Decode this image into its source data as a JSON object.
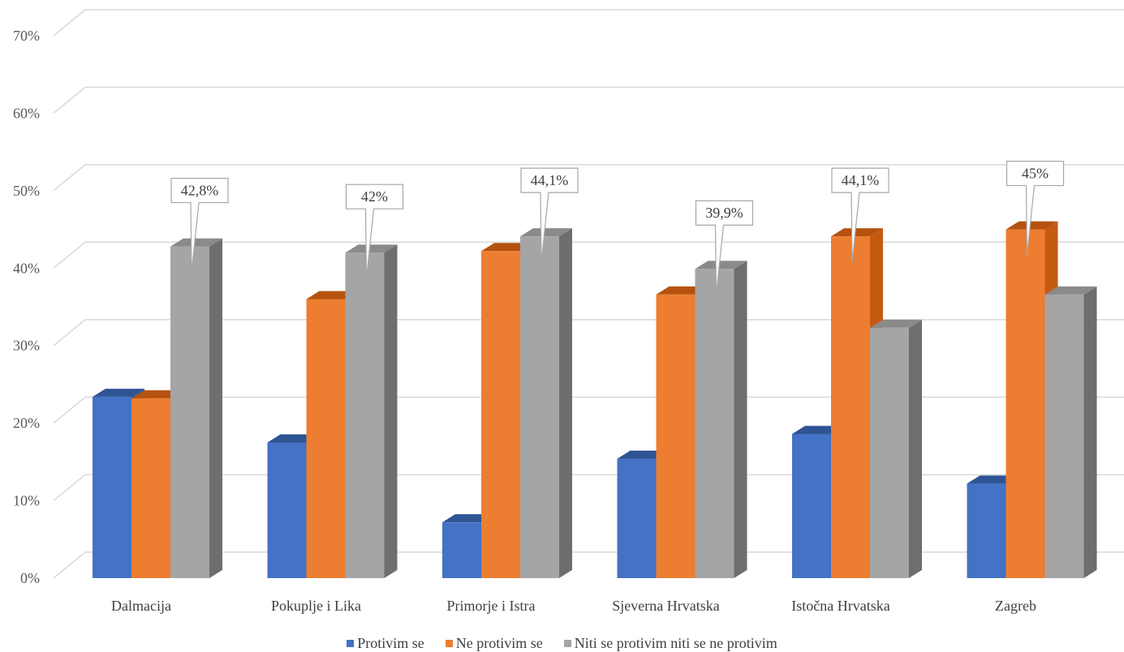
{
  "chart_data": {
    "type": "bar",
    "categories": [
      "Dalmacija",
      "Pokuplje i Lika",
      "Primorje i Istra",
      "Sjeverna Hrvatska",
      "Istočna Hrvatska",
      "Zagreb"
    ],
    "series": [
      {
        "name": "Protivim se",
        "color": "#4472C4",
        "values": [
          23.4,
          17.5,
          7.2,
          15.4,
          18.6,
          12.2
        ]
      },
      {
        "name": "Ne protivim se",
        "color": "#ED7D31",
        "values": [
          23.2,
          36.0,
          42.2,
          36.6,
          44.1,
          45.0
        ]
      },
      {
        "name": "Niti se protivim niti se ne protivim",
        "color": "#A5A5A5",
        "values": [
          42.8,
          42.0,
          44.1,
          39.9,
          32.3,
          36.6
        ]
      }
    ],
    "callouts": [
      {
        "category": 0,
        "series": 2,
        "label": "42,8%"
      },
      {
        "category": 1,
        "series": 2,
        "label": "42%"
      },
      {
        "category": 2,
        "series": 2,
        "label": "44,1%"
      },
      {
        "category": 3,
        "series": 2,
        "label": "39,9%"
      },
      {
        "category": 4,
        "series": 1,
        "label": "44,1%"
      },
      {
        "category": 5,
        "series": 1,
        "label": "45%"
      }
    ],
    "yticks": [
      "0%",
      "10%",
      "20%",
      "30%",
      "40%",
      "50%",
      "60%",
      "70%"
    ],
    "ylim": [
      0,
      70
    ],
    "title": "",
    "xlabel": "",
    "ylabel": "",
    "grid": true,
    "legend_position": "bottom"
  }
}
